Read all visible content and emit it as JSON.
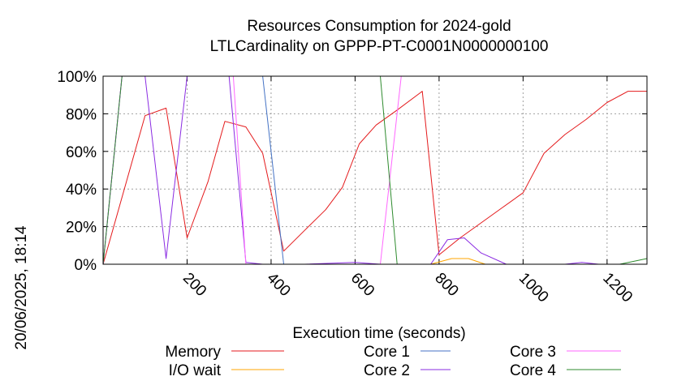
{
  "chart_data": {
    "type": "line",
    "title": "Resources Consumption for 2024-gold",
    "subtitle": "LTLCardinality on GPPP-PT-C0001N0000000100",
    "xlabel": "Execution time (seconds)",
    "ylabel": "",
    "side_label": "20/06/2025, 18:14",
    "xlim": [
      0,
      1295
    ],
    "ylim": [
      0,
      100
    ],
    "x_ticks": [
      200,
      400,
      600,
      800,
      1000,
      1200
    ],
    "x_tick_labels": [
      "200",
      "400",
      "600",
      "800",
      "1000",
      "1200"
    ],
    "y_ticks": [
      0,
      20,
      40,
      60,
      80,
      100
    ],
    "y_tick_labels": [
      "0%",
      "20%",
      "40%",
      "60%",
      "80%",
      "100%"
    ],
    "grid": true,
    "legend_position": "bottom",
    "series": [
      {
        "name": "Memory",
        "color": "#e41a1c",
        "x": [
          0,
          100,
          150,
          200,
          250,
          290,
          340,
          380,
          430,
          480,
          530,
          570,
          610,
          650,
          700,
          760,
          800,
          850,
          900,
          950,
          1000,
          1050,
          1100,
          1150,
          1200,
          1250,
          1295
        ],
        "y": [
          0,
          79,
          83,
          14,
          44,
          76,
          73,
          59,
          7,
          18,
          29,
          41,
          64,
          74,
          82,
          92,
          5,
          14,
          22,
          30,
          38,
          59,
          69,
          77,
          86,
          92,
          92
        ]
      },
      {
        "name": "I/O wait",
        "color": "#ffa500",
        "x": [
          0,
          780,
          830,
          870,
          910,
          1295
        ],
        "y": [
          0,
          0,
          3,
          3,
          0,
          0
        ]
      },
      {
        "name": "Core 1",
        "color": "#4472c4",
        "x": [
          0,
          45,
          380,
          430,
          1295
        ],
        "y": [
          0,
          100,
          100,
          0,
          0
        ]
      },
      {
        "name": "Core 2",
        "color": "#8a2be2",
        "x": [
          0,
          45,
          100,
          150,
          200,
          300,
          340,
          380,
          480,
          600,
          660,
          780,
          820,
          860,
          900,
          960,
          1000,
          1100,
          1140,
          1180,
          1295
        ],
        "y": [
          0,
          100,
          100,
          3,
          100,
          100,
          1,
          0,
          0,
          1,
          0,
          0,
          13,
          14,
          6,
          0,
          0,
          0,
          1,
          0,
          0
        ]
      },
      {
        "name": "Core 3",
        "color": "#ff66ff",
        "x": [
          0,
          45,
          310,
          340,
          660,
          710,
          1295
        ],
        "y": [
          0,
          100,
          100,
          0,
          0,
          100,
          100
        ]
      },
      {
        "name": "Core 4",
        "color": "#2e8b2e",
        "x": [
          0,
          45,
          660,
          700,
          1230,
          1295
        ],
        "y": [
          0,
          100,
          100,
          0,
          0,
          3
        ]
      }
    ]
  }
}
